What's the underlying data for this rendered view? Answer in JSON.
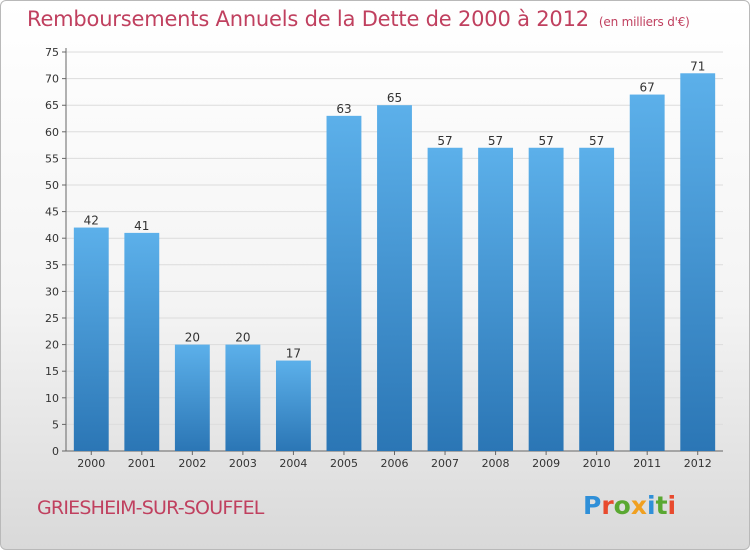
{
  "header": {
    "title": "Remboursements Annuels de la Dette de 2000 à 2012",
    "unit": "(en milliers d'€)"
  },
  "footer": {
    "city": "GRIESHEIM-SUR-SOUFFEL",
    "logo_text": "Proxiti"
  },
  "colors": {
    "title": "#c0405f",
    "bar_top": "#5cb0ea",
    "bar_bottom": "#2b76b5",
    "logo": [
      "#2f8fd8",
      "#e84a2e",
      "#5aa832",
      "#f0a020",
      "#2f8fd8",
      "#5aa832",
      "#e84a2e"
    ]
  },
  "chart_data": {
    "type": "bar",
    "title": "Remboursements Annuels de la Dette de 2000 à 2012",
    "ylabel": "(en milliers d'€)",
    "xlabel": "",
    "categories": [
      "2000",
      "2001",
      "2002",
      "2003",
      "2004",
      "2005",
      "2006",
      "2007",
      "2008",
      "2009",
      "2010",
      "2011",
      "2012"
    ],
    "values": [
      42,
      41,
      20,
      20,
      17,
      63,
      65,
      57,
      57,
      57,
      57,
      67,
      71
    ],
    "ylim": [
      0,
      75
    ],
    "yticks": [
      0,
      5,
      10,
      15,
      20,
      25,
      30,
      35,
      40,
      45,
      50,
      55,
      60,
      65,
      70,
      75
    ],
    "grid": true
  }
}
